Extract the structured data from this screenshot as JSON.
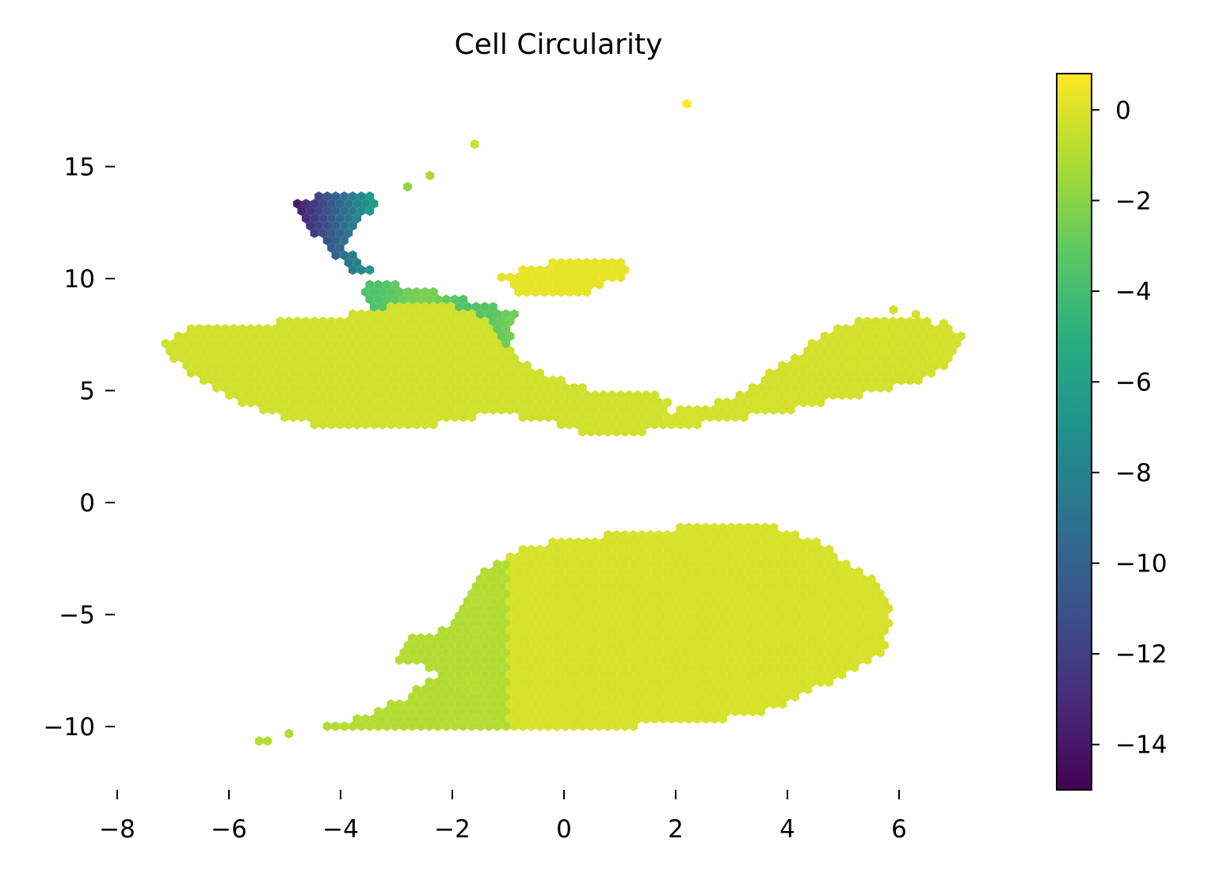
{
  "chart_data": {
    "type": "hexbin",
    "title": "Cell Circularity",
    "xlabel": "",
    "ylabel": "",
    "xlim": [
      -8,
      7.5
    ],
    "ylim": [
      -12.8,
      19.2
    ],
    "x_ticks": [
      -8,
      -6,
      -4,
      -2,
      0,
      2,
      4,
      6
    ],
    "x_tick_labels": [
      "−8",
      "−6",
      "−4",
      "−2",
      "0",
      "2",
      "4",
      "6"
    ],
    "y_ticks": [
      -10,
      -5,
      0,
      5,
      10,
      15
    ],
    "y_tick_labels": [
      "−10",
      "−5",
      "0",
      "5",
      "10",
      "15"
    ],
    "colormap": "viridis",
    "colorbar": {
      "range": [
        -15,
        0.8
      ],
      "ticks": [
        0,
        -2,
        -4,
        -6,
        -8,
        -10,
        -12,
        -14
      ],
      "tick_labels": [
        "0",
        "−2",
        "−4",
        "−6",
        "−8",
        "−10",
        "−12",
        "−14"
      ]
    },
    "grid": false,
    "regions": [
      {
        "name": "lower-mass",
        "polygon": [
          [
            -6.2,
            -11.4
          ],
          [
            -5.0,
            -10.4
          ],
          [
            -3.6,
            -9.5
          ],
          [
            -2.8,
            -8.6
          ],
          [
            -2.2,
            -7.6
          ],
          [
            -3.0,
            -7.0
          ],
          [
            -2.8,
            -6.0
          ],
          [
            -2.0,
            -5.6
          ],
          [
            -1.8,
            -4.2
          ],
          [
            -1.5,
            -3.0
          ],
          [
            -0.8,
            -2.0
          ],
          [
            0.5,
            -1.5
          ],
          [
            2.0,
            -1.1
          ],
          [
            3.8,
            -1.1
          ],
          [
            4.6,
            -1.8
          ],
          [
            5.6,
            -3.5
          ],
          [
            5.9,
            -5.2
          ],
          [
            5.7,
            -6.8
          ],
          [
            4.8,
            -8.0
          ],
          [
            3.8,
            -9.2
          ],
          [
            2.5,
            -9.9
          ],
          [
            0.0,
            -10.1
          ],
          [
            -2.5,
            -10.1
          ],
          [
            -4.5,
            -10.0
          ],
          [
            -5.6,
            -10.7
          ]
        ],
        "value": -0.1
      },
      {
        "name": "upper-left-mass",
        "polygon": [
          [
            -7.3,
            7.0
          ],
          [
            -6.8,
            7.8
          ],
          [
            -5.5,
            8.0
          ],
          [
            -4.2,
            8.3
          ],
          [
            -3.0,
            8.8
          ],
          [
            -2.4,
            9.0
          ],
          [
            -1.6,
            8.6
          ],
          [
            -1.0,
            6.9
          ],
          [
            -0.5,
            6.0
          ],
          [
            0.5,
            5.0
          ],
          [
            1.5,
            5.0
          ],
          [
            2.0,
            4.6
          ],
          [
            1.6,
            3.2
          ],
          [
            0.5,
            3.0
          ],
          [
            -0.3,
            3.6
          ],
          [
            -1.2,
            4.0
          ],
          [
            -2.5,
            3.4
          ],
          [
            -4.5,
            3.4
          ],
          [
            -5.8,
            4.4
          ],
          [
            -6.6,
            5.5
          ]
        ],
        "value": -0.3
      },
      {
        "name": "upper-right-arm",
        "polygon": [
          [
            1.0,
            3.0
          ],
          [
            2.0,
            4.2
          ],
          [
            3.0,
            4.6
          ],
          [
            3.8,
            6.0
          ],
          [
            4.6,
            7.4
          ],
          [
            5.4,
            8.4
          ],
          [
            6.2,
            8.3
          ],
          [
            7.2,
            7.6
          ],
          [
            7.0,
            6.4
          ],
          [
            6.4,
            5.4
          ],
          [
            5.0,
            4.6
          ],
          [
            3.8,
            4.0
          ],
          [
            2.5,
            3.5
          ]
        ],
        "value": -0.2
      },
      {
        "name": "upper-right-lobe",
        "polygon": [
          [
            -1.2,
            10.2
          ],
          [
            0.0,
            10.9
          ],
          [
            1.0,
            11.0
          ],
          [
            1.2,
            10.2
          ],
          [
            0.4,
            9.3
          ],
          [
            -0.8,
            9.2
          ]
        ],
        "value": 0.3
      },
      {
        "name": "connector",
        "polygon": [
          [
            -3.5,
            9.9
          ],
          [
            -2.5,
            9.6
          ],
          [
            -1.6,
            9.0
          ],
          [
            -0.8,
            8.4
          ],
          [
            -1.0,
            7.0
          ],
          [
            -1.8,
            6.8
          ],
          [
            -2.4,
            7.2
          ],
          [
            -3.2,
            8.0
          ],
          [
            -3.6,
            9.0
          ]
        ],
        "value": -2.5
      },
      {
        "name": "branch",
        "polygon": [
          [
            -4.9,
            13.4
          ],
          [
            -4.2,
            13.8
          ],
          [
            -3.4,
            13.9
          ],
          [
            -3.3,
            13.2
          ],
          [
            -3.7,
            12.4
          ],
          [
            -3.9,
            11.3
          ],
          [
            -3.4,
            10.3
          ],
          [
            -3.8,
            10.2
          ],
          [
            -4.4,
            11.8
          ],
          [
            -4.8,
            13.0
          ]
        ],
        "value": -6.5
      }
    ],
    "outliers": [
      {
        "x": 2.2,
        "y": 17.8,
        "value": 0.8
      },
      {
        "x": -1.6,
        "y": 16.0,
        "value": -0.3
      },
      {
        "x": -2.4,
        "y": 14.6,
        "value": -1.2
      },
      {
        "x": -2.8,
        "y": 14.1,
        "value": -1.8
      },
      {
        "x": 5.9,
        "y": 8.6,
        "value": -0.2
      },
      {
        "x": 6.3,
        "y": 8.4,
        "value": -0.1
      },
      {
        "x": 6.8,
        "y": 8.0,
        "value": -0.1
      }
    ]
  }
}
